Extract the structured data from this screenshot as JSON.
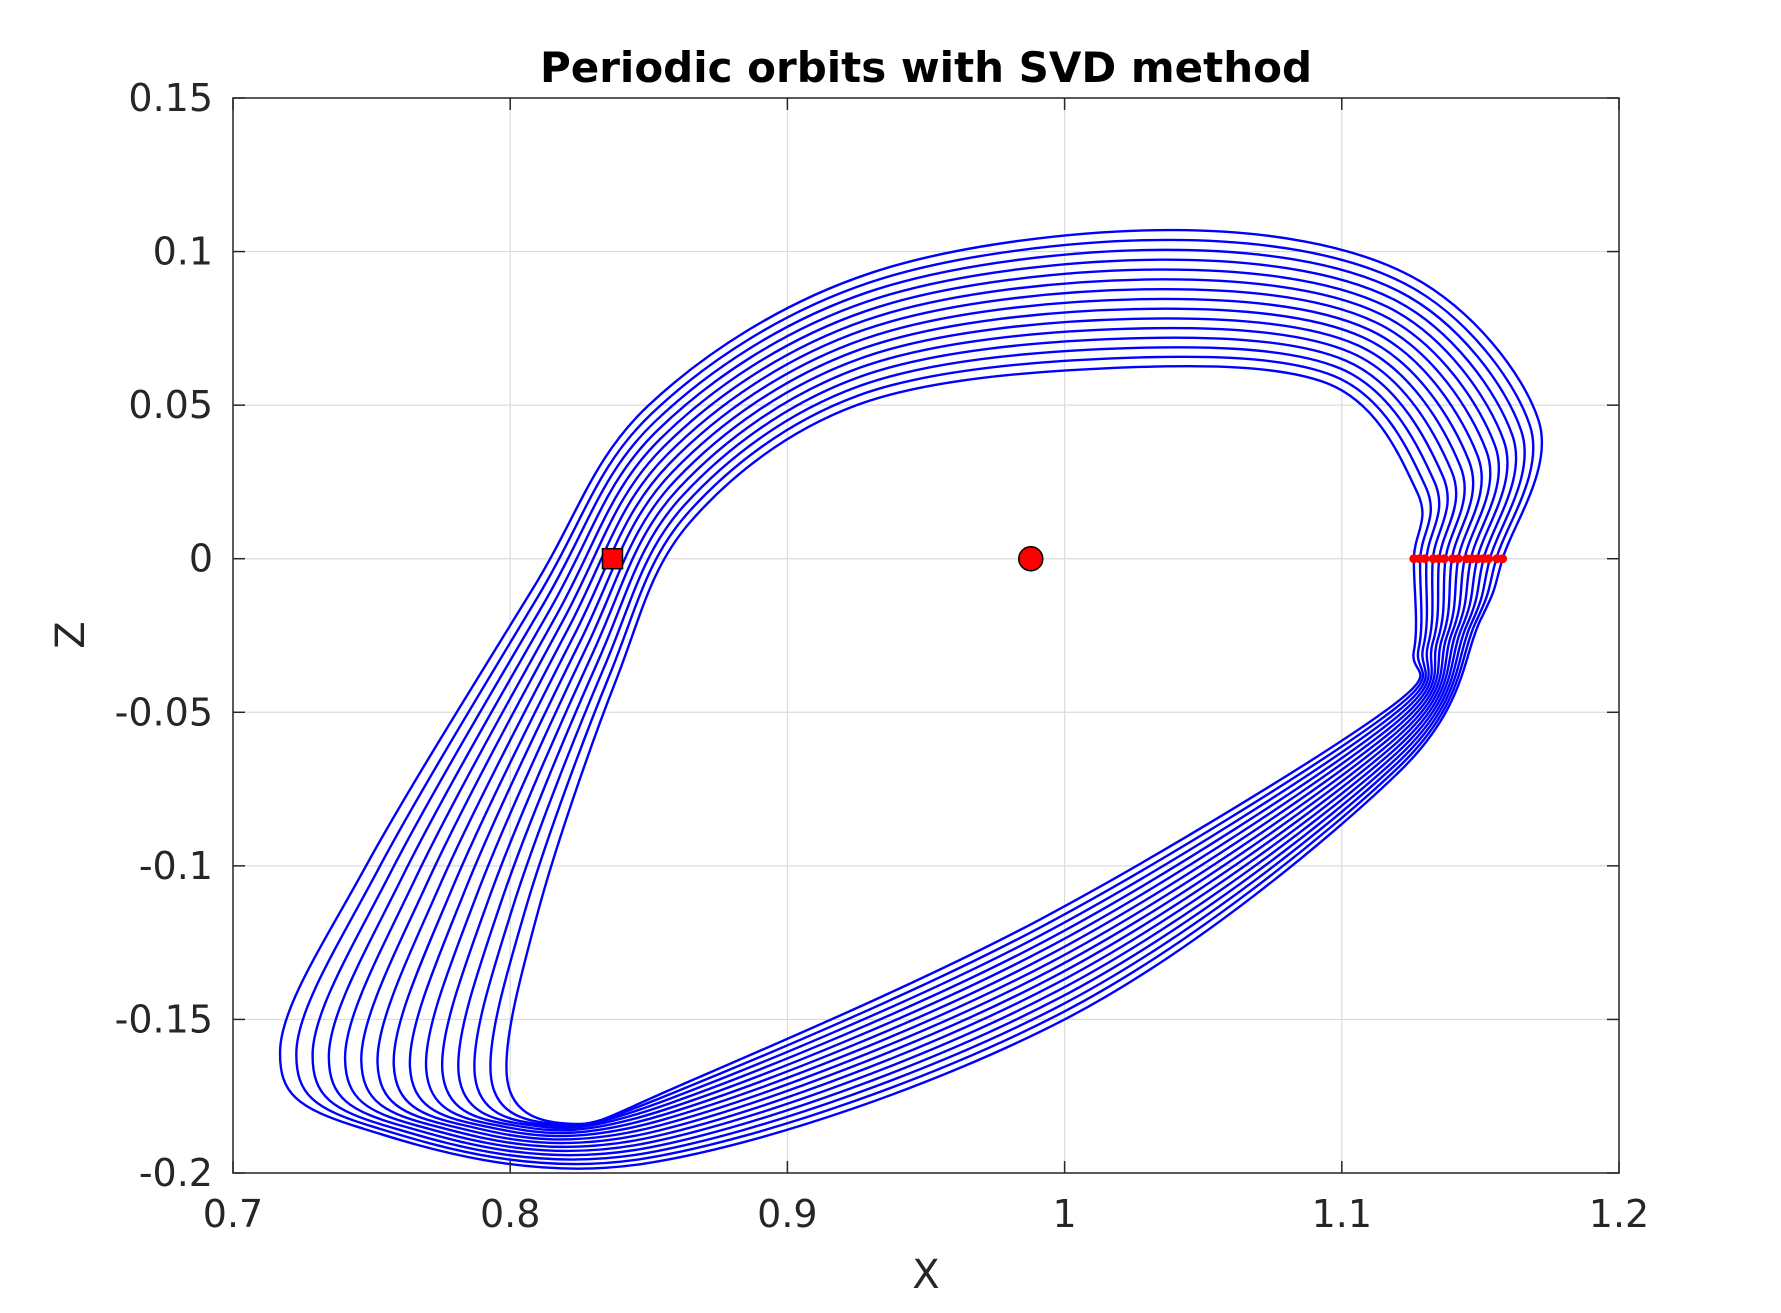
{
  "chart_data": {
    "type": "line",
    "title": "Periodic orbits with SVD method",
    "xlabel": "X",
    "ylabel": "Z",
    "xlim": [
      0.7,
      1.2
    ],
    "ylim": [
      -0.2,
      0.15
    ],
    "grid": true,
    "x_ticks": [
      "0.7",
      "0.8",
      "0.9",
      "1",
      "1.1",
      "1.2"
    ],
    "y_ticks": [
      "0.15",
      "0.1",
      "0.05",
      "0",
      "-0.05",
      "-0.1",
      "-0.15",
      "-0.2"
    ],
    "colors": {
      "orbit": "#0000ff",
      "marker": "#ff0000",
      "grid": "#dcdcdc",
      "axis": "#262626"
    },
    "orbit_family": {
      "count": 15,
      "outer": {
        "x_min": 0.717,
        "x_max": 1.174,
        "z_top": 0.107,
        "z_bottom": -0.197,
        "z_crossing_x": 1.158
      },
      "inner": {
        "x_min": 0.799,
        "x_max": 1.128,
        "z_top": 0.062,
        "z_bottom": -0.184,
        "z_crossing_x": 1.126
      },
      "crossing_points_x": [
        1.126,
        1.128,
        1.13,
        1.133,
        1.135,
        1.137,
        1.14,
        1.142,
        1.145,
        1.147,
        1.149,
        1.151,
        1.153,
        1.156,
        1.158
      ]
    },
    "markers": [
      {
        "name": "square",
        "shape": "square",
        "x": 0.8369,
        "y": 0
      },
      {
        "name": "circle",
        "shape": "circle",
        "x": 0.9878,
        "y": 0
      }
    ]
  }
}
